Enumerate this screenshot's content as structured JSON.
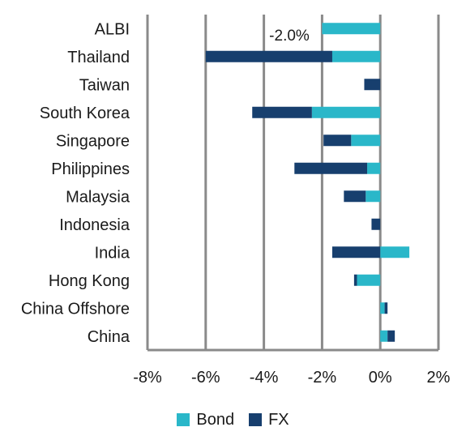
{
  "chart_data": {
    "type": "bar",
    "orientation": "horizontal",
    "stacked": true,
    "categories": [
      "ALBI",
      "Thailand",
      "Taiwan",
      "South Korea",
      "Singapore",
      "Philippines",
      "Malaysia",
      "Indonesia",
      "India",
      "Hong Kong",
      "China Offshore",
      "China"
    ],
    "series": [
      {
        "name": "Bond",
        "color": "#2ab7c9",
        "values": [
          -2.0,
          -1.65,
          0.0,
          -2.35,
          -1.0,
          -0.45,
          -0.5,
          0.0,
          1.0,
          -0.8,
          0.15,
          0.25
        ]
      },
      {
        "name": "FX",
        "color": "#173f6e",
        "values": [
          0.0,
          -4.35,
          -0.55,
          -2.05,
          -0.95,
          -2.5,
          -0.75,
          -0.3,
          -1.65,
          -0.1,
          0.1,
          0.25
        ]
      }
    ],
    "annotation": "-2.0%",
    "xlim": [
      -8,
      2
    ],
    "xticks": [
      "-8%",
      "-6%",
      "-4%",
      "-2%",
      "0%",
      "2%"
    ],
    "xtick_values": [
      -8,
      -6,
      -4,
      -2,
      0,
      2
    ],
    "grid": "vertical",
    "legend_position": "bottom",
    "xlabel": "",
    "ylabel": "",
    "title": ""
  }
}
